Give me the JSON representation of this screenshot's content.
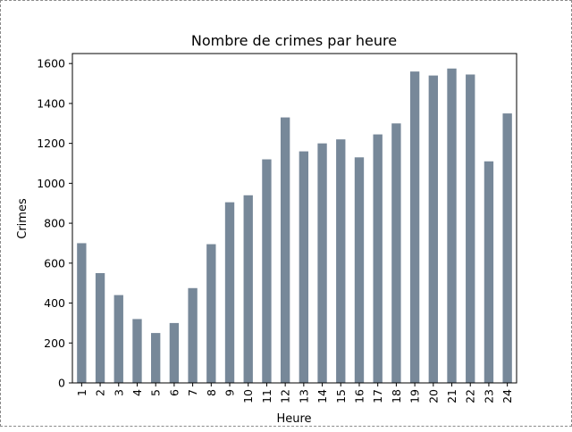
{
  "chart_data": {
    "type": "bar",
    "title": "Nombre de crimes par heure",
    "xlabel": "Heure",
    "ylabel": "Crimes",
    "categories": [
      "1",
      "2",
      "3",
      "4",
      "5",
      "6",
      "7",
      "8",
      "9",
      "10",
      "11",
      "12",
      "13",
      "14",
      "15",
      "16",
      "17",
      "18",
      "19",
      "20",
      "21",
      "22",
      "23",
      "24"
    ],
    "values": [
      700,
      550,
      440,
      320,
      250,
      300,
      475,
      695,
      905,
      940,
      1120,
      1330,
      1160,
      1200,
      1220,
      1130,
      1245,
      1300,
      1560,
      1540,
      1575,
      1545,
      1110,
      1350
    ],
    "ylim": [
      0,
      1650
    ],
    "yticks": [
      0,
      200,
      400,
      600,
      800,
      1000,
      1200,
      1400,
      1600
    ],
    "bar_color": "#778899",
    "grid": false,
    "legend": "none"
  }
}
